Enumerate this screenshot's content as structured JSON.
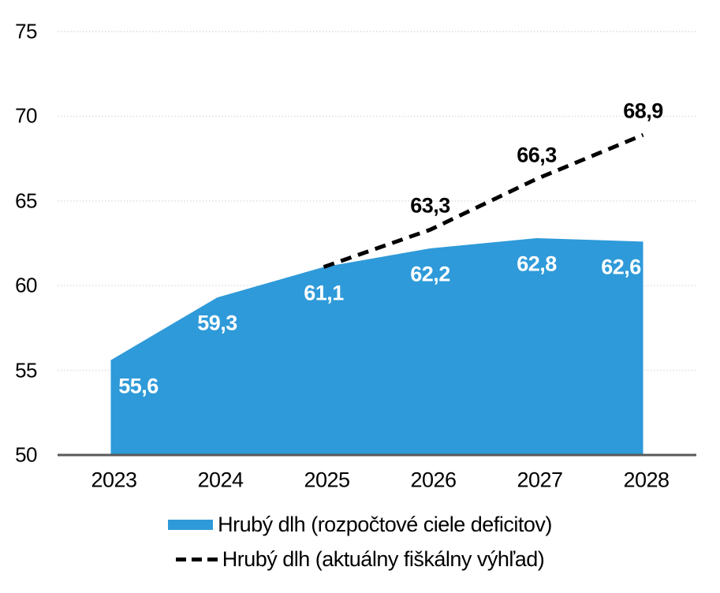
{
  "chart_data": {
    "type": "area",
    "title": "",
    "categories": [
      "2023",
      "2024",
      "2025",
      "2026",
      "2027",
      "2028"
    ],
    "series": [
      {
        "name": "Hrubý dlh (rozpočtové ciele deficitov)",
        "type": "area",
        "color": "#2E9AD9",
        "values": [
          55.6,
          59.3,
          61.1,
          62.2,
          62.8,
          62.6
        ],
        "labels": [
          "55,6",
          "59,3",
          "61,1",
          "62,2",
          "62,8",
          "62,6"
        ],
        "label_color": "#ffffff"
      },
      {
        "name": "Hrubý dlh (aktuálny fiškálny výhľad)",
        "type": "line",
        "line_style": "dashed",
        "color": "#000000",
        "values": [
          null,
          null,
          61.1,
          63.3,
          66.3,
          68.9
        ],
        "labels": [
          null,
          null,
          null,
          "63,3",
          "66,3",
          "68,9"
        ],
        "label_color": "#000000"
      }
    ],
    "ylim": [
      50,
      75
    ],
    "yticks": [
      50,
      55,
      60,
      65,
      70,
      75
    ],
    "ytick_labels": [
      "50",
      "55",
      "60",
      "65",
      "70",
      "75"
    ],
    "grid": "horizontal-dotted",
    "legend_position": "bottom"
  },
  "legend": {
    "items": [
      {
        "label": "Hrubý dlh (rozpočtové ciele deficitov)",
        "swatch": "area",
        "color": "#2E9AD9"
      },
      {
        "label": "Hrubý dlh (aktuálny fiškálny výhľad)",
        "swatch": "dashed-line",
        "color": "#000000"
      }
    ]
  },
  "colors": {
    "area_fill": "#2E9AD9",
    "dashed_line": "#000000",
    "axis_line": "#595959",
    "gridline": "#DCDCDC",
    "background": "#FFFFFF"
  }
}
